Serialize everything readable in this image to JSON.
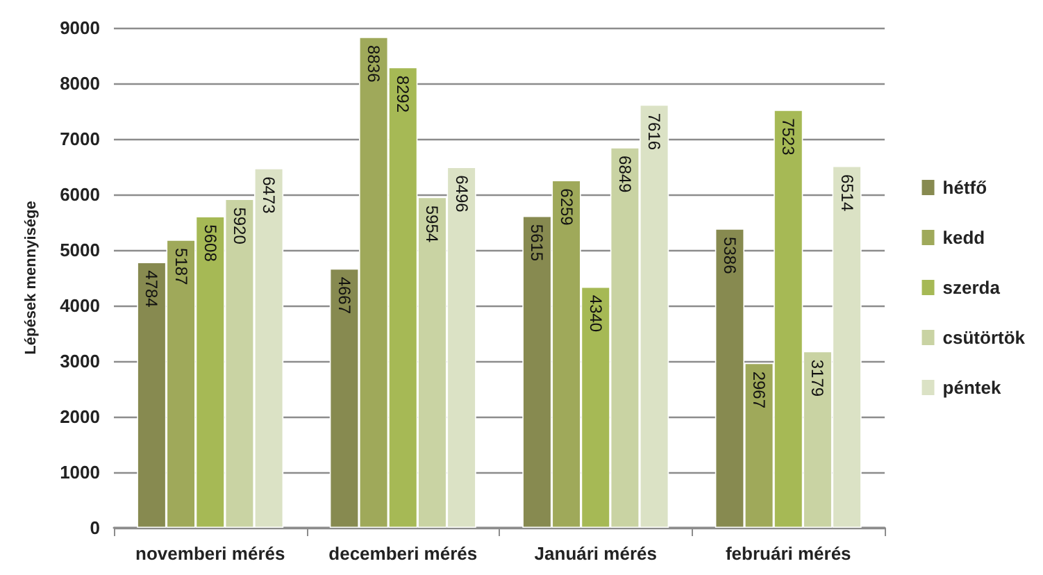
{
  "chart_data": {
    "type": "bar",
    "ylabel": "Lépések mennyisége",
    "categories": [
      "novemberi mérés",
      "decemberi mérés",
      "Januári mérés",
      "februári mérés"
    ],
    "series": [
      {
        "name": "hétfő",
        "color": "#878a50",
        "values": [
          4784,
          4667,
          5615,
          5386
        ]
      },
      {
        "name": "kedd",
        "color": "#9fa95a",
        "values": [
          5187,
          8836,
          6259,
          2967
        ]
      },
      {
        "name": "szerda",
        "color": "#a6b955",
        "values": [
          5608,
          8292,
          4340,
          7523
        ]
      },
      {
        "name": "csütörtök",
        "color": "#c9d3a3",
        "values": [
          5920,
          5954,
          6849,
          3179
        ]
      },
      {
        "name": "péntek",
        "color": "#dbe2c5",
        "values": [
          6473,
          6496,
          7616,
          6514
        ]
      }
    ],
    "ylim": [
      0,
      9000
    ],
    "yticks": [
      0,
      1000,
      2000,
      3000,
      4000,
      5000,
      6000,
      7000,
      8000,
      9000
    ],
    "grid": "y",
    "legend": "right",
    "data_labels": true
  }
}
